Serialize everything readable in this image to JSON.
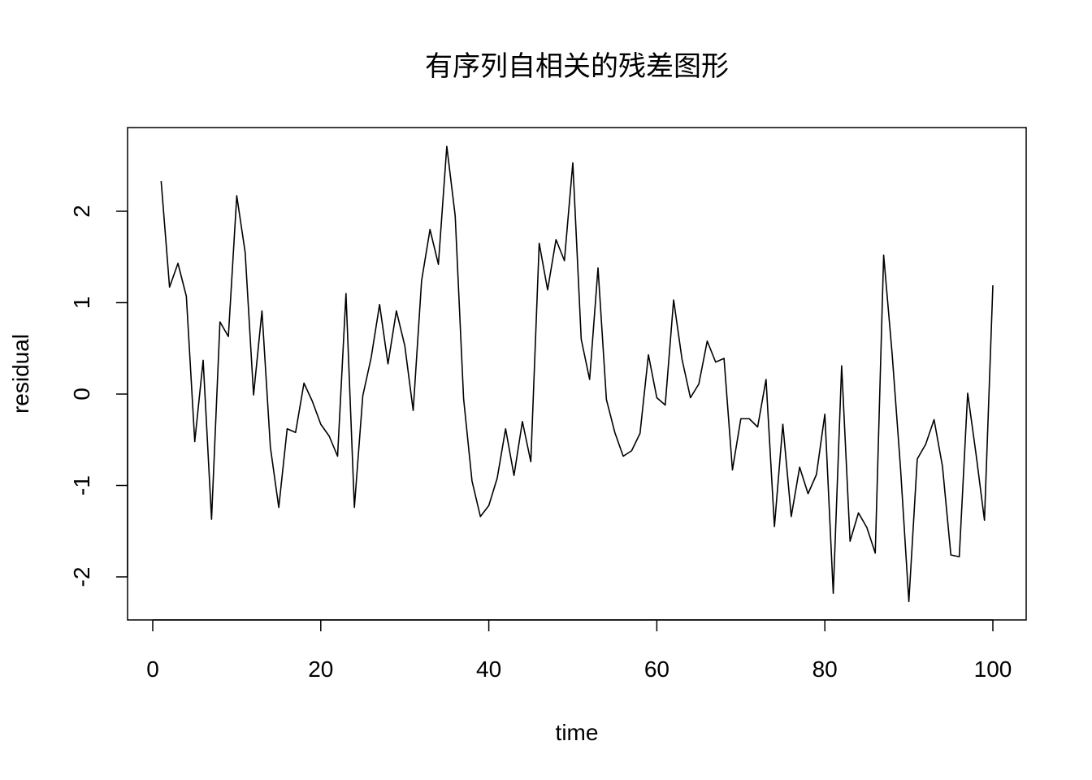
{
  "chart_data": {
    "type": "line",
    "title": "有序列自相关的残差图形",
    "xlabel": "time",
    "ylabel": "residual",
    "xlim": [
      0,
      100
    ],
    "ylim": [
      -2.5,
      2.75
    ],
    "xticks": [
      0,
      20,
      40,
      60,
      80,
      100
    ],
    "yticks": [
      -2,
      -1,
      0,
      1,
      2
    ],
    "grid": false,
    "legend": "none",
    "series": [
      {
        "x": [
          1,
          2,
          3,
          4,
          5,
          6,
          7,
          8,
          9,
          10,
          11,
          12,
          13,
          14,
          15,
          16,
          17,
          18,
          19,
          20,
          21,
          22,
          23,
          24,
          25,
          26,
          27,
          28,
          29,
          30,
          31,
          32,
          33,
          34,
          35,
          36,
          37,
          38,
          39,
          40,
          41,
          42,
          43,
          44,
          45,
          46,
          47,
          48,
          49,
          50,
          51,
          52,
          53,
          54,
          55,
          56,
          57,
          58,
          59,
          60,
          61,
          62,
          63,
          64,
          65,
          66,
          67,
          68,
          69,
          70,
          71,
          72,
          73,
          74,
          75,
          76,
          77,
          78,
          79,
          80,
          81,
          82,
          83,
          84,
          85,
          86,
          87,
          88,
          89,
          90,
          91,
          92,
          93,
          94,
          95,
          96,
          97,
          98,
          99,
          100
        ],
        "values": [
          2.33,
          1.17,
          1.43,
          1.07,
          -0.52,
          0.37,
          -1.37,
          0.79,
          0.63,
          2.17,
          1.55,
          -0.01,
          0.91,
          -0.58,
          -1.24,
          -0.38,
          -0.42,
          0.12,
          -0.08,
          -0.33,
          -0.46,
          -0.68,
          1.1,
          -1.24,
          -0.02,
          0.4,
          0.98,
          0.33,
          0.91,
          0.53,
          -0.18,
          1.24,
          1.8,
          1.42,
          2.71,
          1.95,
          -0.05,
          -0.95,
          -1.34,
          -1.22,
          -0.92,
          -0.38,
          -0.89,
          -0.3,
          -0.74,
          1.65,
          1.14,
          1.69,
          1.46,
          2.53,
          0.6,
          0.16,
          1.38,
          -0.06,
          -0.42,
          -0.68,
          -0.62,
          -0.43,
          0.43,
          -0.04,
          -0.12,
          1.03,
          0.38,
          -0.04,
          0.11,
          0.58,
          0.35,
          0.39,
          -0.83,
          -0.27,
          -0.27,
          -0.36,
          0.16,
          -1.45,
          -0.33,
          -1.34,
          -0.8,
          -1.09,
          -0.88,
          -0.22,
          -2.18,
          0.31,
          -1.61,
          -1.3,
          -1.46,
          -1.74,
          1.52,
          0.45,
          -0.8,
          -2.27,
          -0.71,
          -0.55,
          -0.28,
          -0.79,
          -1.76,
          -1.78,
          0.01,
          -0.66,
          -1.38,
          1.19
        ]
      }
    ]
  }
}
